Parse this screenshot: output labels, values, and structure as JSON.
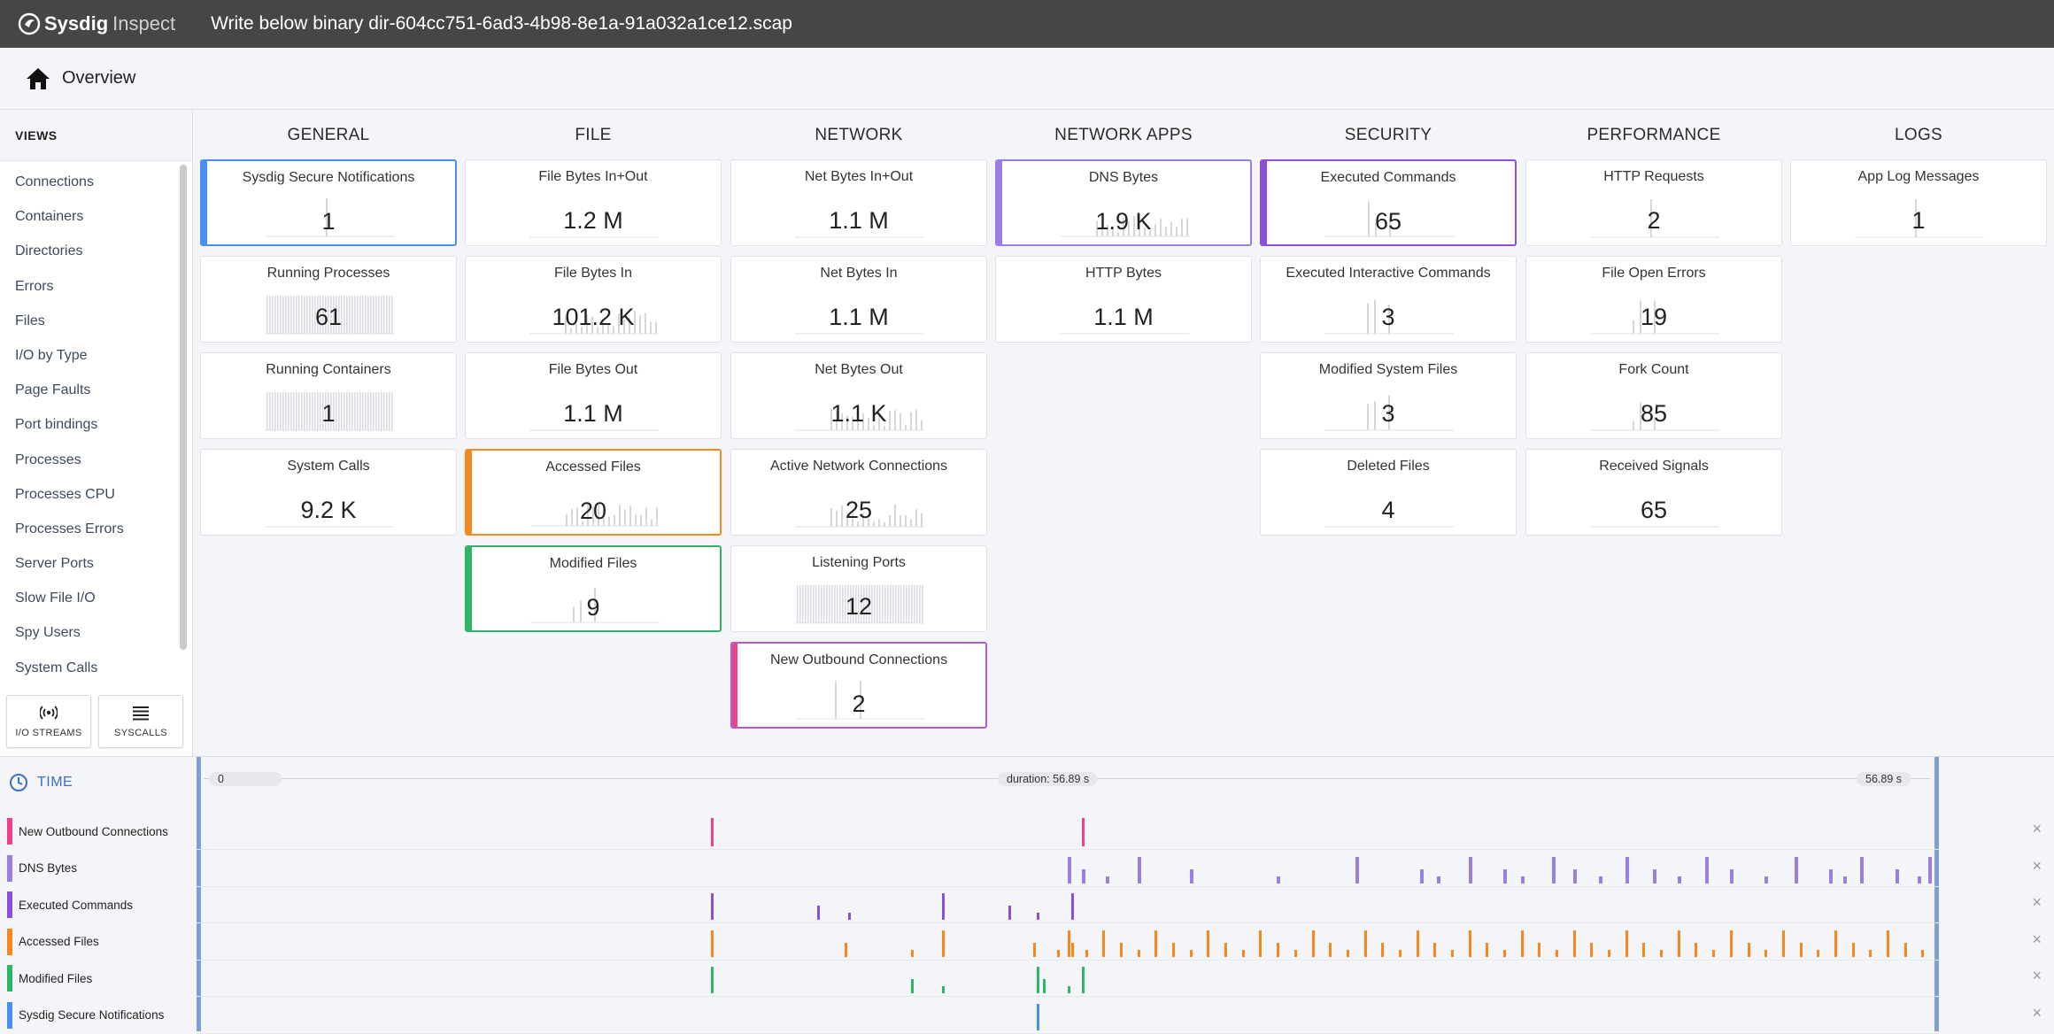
{
  "app": {
    "logo_primary": "Sysdig",
    "logo_secondary": "Inspect",
    "title": "Write below binary dir-604cc751-6ad3-4b98-8e1a-91a032a1ce12.scap"
  },
  "breadcrumb": {
    "icon": "home-icon",
    "label": "Overview"
  },
  "sidebar": {
    "heading": "VIEWS",
    "items": [
      "Connections",
      "Containers",
      "Directories",
      "Errors",
      "Files",
      "I/O by Type",
      "Page Faults",
      "Port bindings",
      "Processes",
      "Processes CPU",
      "Processes Errors",
      "Server Ports",
      "Slow File I/O",
      "Spy Users",
      "System Calls"
    ],
    "buttons": [
      {
        "icon": "io-streams-icon",
        "label": "I/O STREAMS"
      },
      {
        "icon": "syscalls-icon",
        "label": "SYSCALLS"
      }
    ]
  },
  "columns": [
    {
      "heading": "GENERAL",
      "tiles": [
        {
          "name": "Sysdig Secure Notifications",
          "value": "1",
          "selected": true,
          "accent": "#4a8ef0",
          "spark": "single"
        },
        {
          "name": "Running Processes",
          "value": "61",
          "spark": "dense"
        },
        {
          "name": "Running Containers",
          "value": "1",
          "spark": "dense"
        },
        {
          "name": "System Calls",
          "value": "9.2 K",
          "spark": "flat"
        }
      ]
    },
    {
      "heading": "FILE",
      "tiles": [
        {
          "name": "File Bytes In+Out",
          "value": "1.2 M",
          "spark": "flat"
        },
        {
          "name": "File Bytes In",
          "value": "101.2 K",
          "spark": "bars"
        },
        {
          "name": "File Bytes Out",
          "value": "1.1 M",
          "spark": "flat"
        },
        {
          "name": "Accessed Files",
          "value": "20",
          "selected": true,
          "accent": "#f5891f",
          "spark": "bars"
        },
        {
          "name": "Modified Files",
          "value": "9",
          "selected": true,
          "accent": "#2fb566",
          "spark": "few"
        }
      ]
    },
    {
      "heading": "NETWORK",
      "tiles": [
        {
          "name": "Net Bytes In+Out",
          "value": "1.1 M",
          "spark": "flat"
        },
        {
          "name": "Net Bytes In",
          "value": "1.1 M",
          "spark": "flat"
        },
        {
          "name": "Net Bytes Out",
          "value": "1.1 K",
          "spark": "bars"
        },
        {
          "name": "Active Network Connections",
          "value": "25",
          "spark": "bars"
        },
        {
          "name": "Listening Ports",
          "value": "12",
          "spark": "dense"
        },
        {
          "name": "New Outbound Connections",
          "value": "2",
          "selected": true,
          "accent": "#ef3f8e",
          "border": "#b45ad6",
          "spark": "two"
        }
      ]
    },
    {
      "heading": "NETWORK APPS",
      "tiles": [
        {
          "name": "DNS Bytes",
          "value": "1.9 K",
          "selected": true,
          "accent": "#9b7de8",
          "spark": "bars"
        },
        {
          "name": "HTTP Bytes",
          "value": "1.1 M",
          "spark": "flat"
        }
      ]
    },
    {
      "heading": "SECURITY",
      "tiles": [
        {
          "name": "Executed Commands",
          "value": "65",
          "selected": true,
          "accent": "#8b4fd8",
          "spark": "few"
        },
        {
          "name": "Executed Interactive Commands",
          "value": "3",
          "spark": "few"
        },
        {
          "name": "Modified System Files",
          "value": "3",
          "spark": "few"
        },
        {
          "name": "Deleted Files",
          "value": "4",
          "spark": "flat"
        }
      ]
    },
    {
      "heading": "PERFORMANCE",
      "tiles": [
        {
          "name": "HTTP Requests",
          "value": "2",
          "spark": "single"
        },
        {
          "name": "File Open Errors",
          "value": "19",
          "spark": "few"
        },
        {
          "name": "Fork Count",
          "value": "85",
          "spark": "few"
        },
        {
          "name": "Received Signals",
          "value": "65",
          "spark": "flat"
        }
      ]
    },
    {
      "heading": "LOGS",
      "tiles": [
        {
          "name": "App Log Messages",
          "value": "1",
          "spark": "single"
        }
      ]
    }
  ],
  "timeline": {
    "heading": "TIME",
    "start_label": "0",
    "duration_label": "duration: 56.89 s",
    "end_label": "56.89 s",
    "rows": [
      {
        "label": "New Outbound Connections",
        "color": "#ef3f8e",
        "events": [
          0.295,
          0.508
        ]
      },
      {
        "label": "DNS Bytes",
        "color": "#9b7de8",
        "events": [
          0.5,
          0.508,
          0.522,
          0.54,
          0.57,
          0.62,
          0.665,
          0.702,
          0.712,
          0.73,
          0.75,
          0.76,
          0.778,
          0.79,
          0.805,
          0.82,
          0.836,
          0.85,
          0.866,
          0.88,
          0.9,
          0.917,
          0.937,
          0.945,
          0.955,
          0.975,
          0.988,
          0.994
        ]
      },
      {
        "label": "Executed Commands",
        "color": "#8b4fd8",
        "events": [
          0.295,
          0.356,
          0.374,
          0.428,
          0.466,
          0.482,
          0.502
        ]
      },
      {
        "label": "Accessed Files",
        "color": "#f5891f",
        "events": [
          0.295,
          0.372,
          0.41,
          0.428,
          0.48,
          0.494,
          0.5,
          0.502,
          0.51,
          0.52,
          0.53,
          0.54,
          0.55,
          0.56,
          0.57,
          0.58,
          0.59,
          0.6,
          0.61,
          0.62,
          0.63,
          0.64,
          0.65,
          0.66,
          0.67,
          0.68,
          0.69,
          0.7,
          0.71,
          0.72,
          0.73,
          0.74,
          0.75,
          0.76,
          0.77,
          0.78,
          0.79,
          0.8,
          0.81,
          0.82,
          0.83,
          0.84,
          0.85,
          0.86,
          0.87,
          0.88,
          0.89,
          0.9,
          0.91,
          0.92,
          0.93,
          0.94,
          0.95,
          0.96,
          0.97,
          0.98,
          0.99
        ]
      },
      {
        "label": "Modified Files",
        "color": "#2fb566",
        "events": [
          0.295,
          0.41,
          0.428,
          0.482,
          0.486,
          0.5,
          0.508
        ]
      },
      {
        "label": "Sysdig Secure Notifications",
        "color": "#4a8ef0",
        "events": [
          0.482
        ]
      }
    ]
  }
}
